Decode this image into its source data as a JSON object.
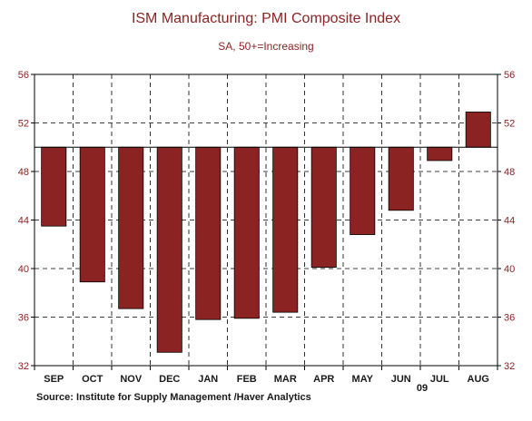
{
  "chart_data": {
    "type": "bar",
    "title": "ISM Manufacturing: PMI Composite Index",
    "subtitle": "SA, 50+=Increasing",
    "categories": [
      "SEP",
      "OCT",
      "NOV",
      "DEC",
      "JAN",
      "FEB",
      "MAR",
      "APR",
      "MAY",
      "JUN",
      "JUL",
      "AUG"
    ],
    "year_label": "09",
    "values": [
      43.5,
      38.9,
      36.7,
      33.1,
      35.8,
      35.9,
      36.4,
      40.1,
      42.8,
      44.8,
      48.9,
      52.9
    ],
    "baseline": 50,
    "ylim": [
      32,
      56
    ],
    "yticks": [
      32,
      36,
      40,
      44,
      48,
      52,
      56
    ],
    "ytick_labels": [
      "32",
      "36",
      "40",
      "44",
      "48",
      "52",
      "56"
    ],
    "grid": true,
    "source": "Source:  Institute for Supply Management /Haver Analytics",
    "colors": {
      "bar": "#8b2323",
      "text": "#8b2323",
      "axis": "#000000"
    }
  }
}
